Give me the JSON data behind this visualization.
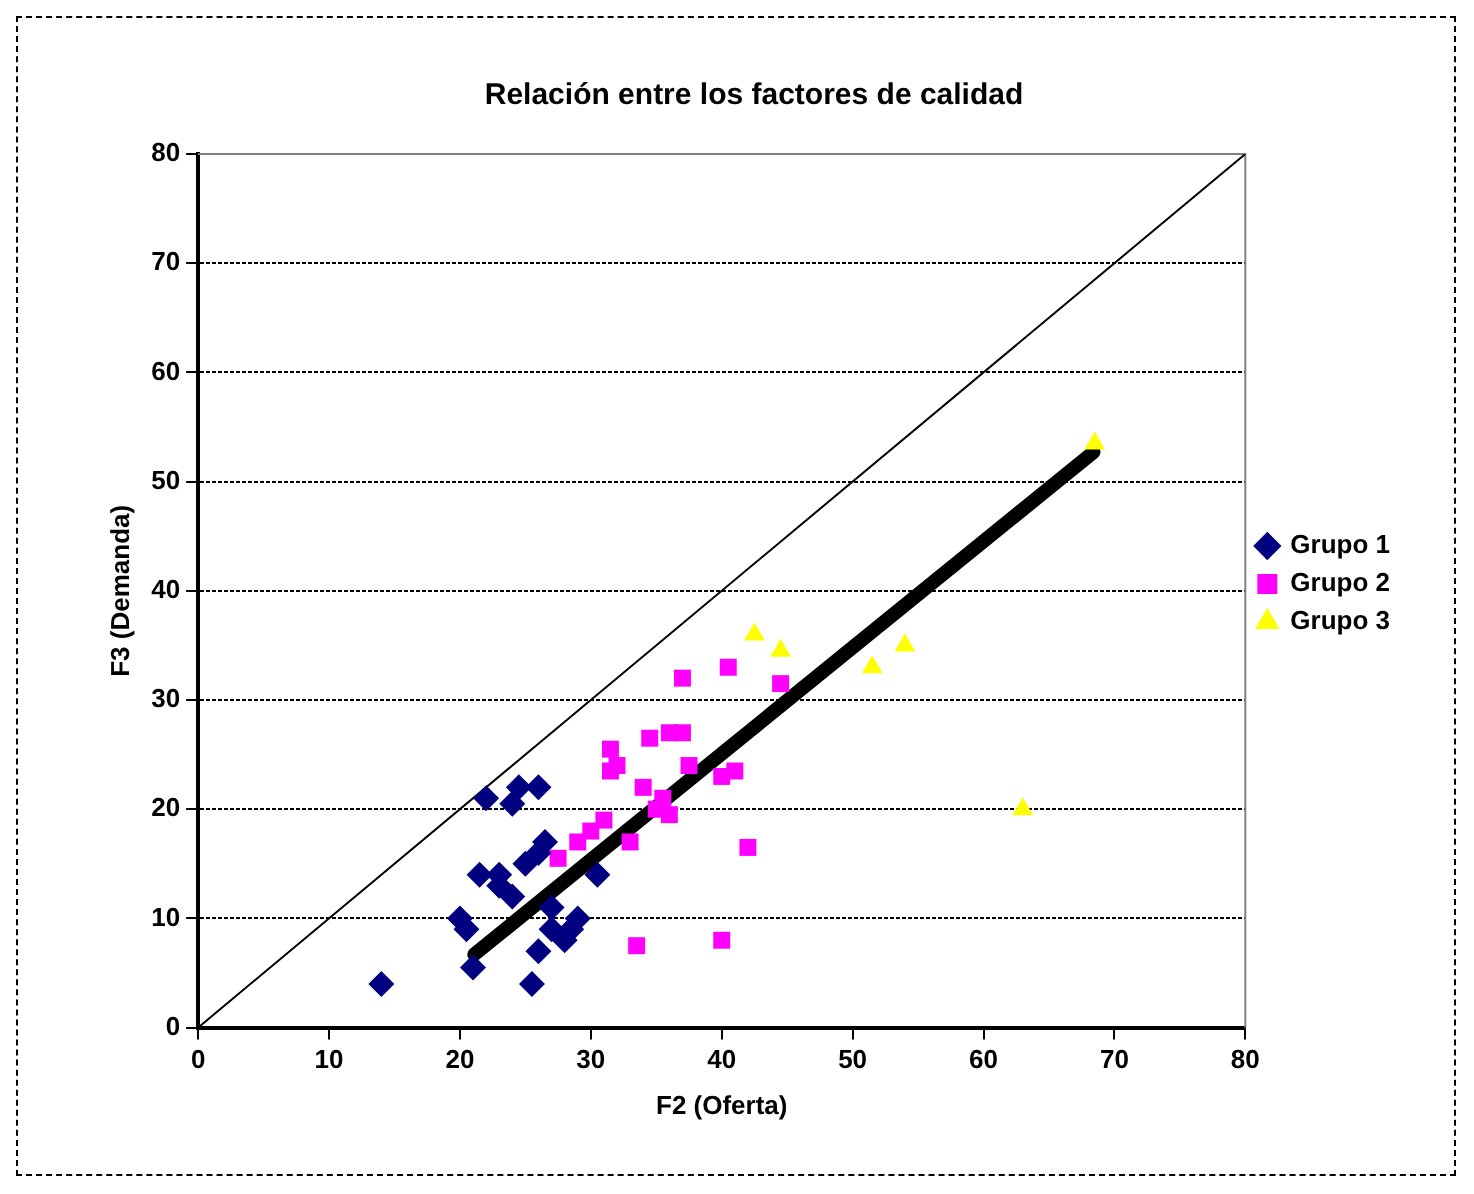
{
  "chart_data": {
    "type": "scatter",
    "title": "Relación entre los factores de calidad",
    "xlabel": "F2 (Oferta)",
    "ylabel": "F3 (Demanda)",
    "xlim": [
      0,
      80
    ],
    "ylim": [
      0,
      80
    ],
    "xticks": [
      0,
      10,
      20,
      30,
      40,
      50,
      60,
      70,
      80
    ],
    "yticks": [
      0,
      10,
      20,
      30,
      40,
      50,
      60,
      70,
      80
    ],
    "grid": "y",
    "legend": "right",
    "series": [
      {
        "name": "Grupo 1",
        "color": "#000080",
        "marker": "diamond",
        "x": [
          14,
          20,
          20.5,
          21,
          21.5,
          22,
          23,
          24,
          24.5,
          24,
          25,
          25.5,
          26,
          26,
          26,
          27,
          27,
          28,
          28.5,
          29,
          30.5,
          26.5,
          23
        ],
        "values": [
          4,
          10,
          9,
          5.5,
          14,
          21,
          14,
          20.5,
          22,
          12,
          15,
          4,
          22,
          16,
          7,
          11,
          9,
          8,
          9,
          10,
          14,
          17,
          13
        ]
      },
      {
        "name": "Grupo 2",
        "color": "#ff00ff",
        "marker": "square",
        "x": [
          27.5,
          29,
          30,
          31,
          31.5,
          31.5,
          32,
          33,
          33.5,
          34,
          34.5,
          35,
          35.5,
          36,
          36,
          37,
          37,
          37.5,
          40,
          40,
          40.5,
          41,
          42,
          44.5
        ],
        "values": [
          15.5,
          17,
          18,
          19,
          25.5,
          23.5,
          24,
          17,
          7.5,
          22,
          26.5,
          20,
          21,
          27,
          19.5,
          32,
          27,
          24,
          23,
          8,
          33,
          23.5,
          16.5,
          31.5
        ]
      },
      {
        "name": "Grupo 3",
        "color": "#ffff00",
        "marker": "triangle",
        "x": [
          42.5,
          44.5,
          51.5,
          54,
          63,
          68.5
        ],
        "values": [
          36,
          34.5,
          33,
          35,
          20,
          53.5
        ]
      },
      {
        "type": "line",
        "color": "#000000",
        "x": [
          0,
          80
        ],
        "values": [
          0,
          80
        ]
      },
      {
        "type": "line",
        "color": "#000000",
        "x": [
          21.1,
          68.4
        ],
        "values": [
          6.7,
          52.7
        ]
      }
    ]
  }
}
